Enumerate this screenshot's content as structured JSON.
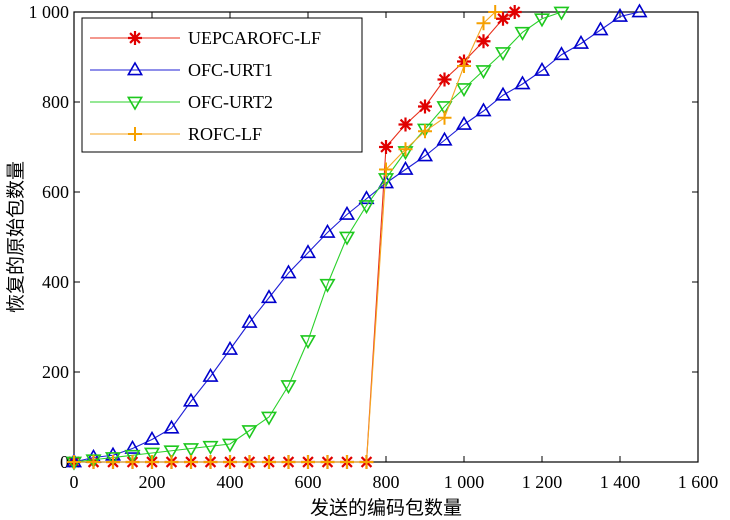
{
  "chart_data": {
    "type": "line",
    "xlabel": "发送的编码包数量",
    "ylabel": "恢复的原始包数量",
    "xlim": [
      0,
      1600
    ],
    "ylim": [
      0,
      1000
    ],
    "xticks": [
      0,
      200,
      400,
      600,
      800,
      1000,
      1200,
      1400,
      1600
    ],
    "yticks": [
      0,
      200,
      400,
      600,
      800,
      1000
    ],
    "xtick_labels": [
      "0",
      "200",
      "400",
      "600",
      "800",
      "1 000",
      "1 200",
      "1 400",
      "1 600"
    ],
    "ytick_labels": [
      "0",
      "200",
      "400",
      "600",
      "800",
      "1 000"
    ],
    "grid": false,
    "legend_position": "top-left",
    "series": [
      {
        "name": "UEPCAROFC-LF",
        "color": "#e8301c",
        "marker_color": "#e00000",
        "marker": "asterisk",
        "x": [
          0,
          50,
          100,
          150,
          200,
          250,
          300,
          350,
          400,
          450,
          500,
          550,
          600,
          650,
          700,
          750,
          800,
          850,
          900,
          950,
          1000,
          1050,
          1100,
          1130
        ],
        "y": [
          0,
          0,
          0,
          0,
          0,
          0,
          0,
          0,
          0,
          0,
          0,
          0,
          0,
          0,
          0,
          0,
          700,
          750,
          790,
          850,
          890,
          935,
          985,
          1000
        ]
      },
      {
        "name": "OFC-URT1",
        "color": "#1f1fd6",
        "marker_color": "#0000cc",
        "marker": "triangle-up",
        "x": [
          0,
          50,
          100,
          150,
          200,
          250,
          300,
          350,
          400,
          450,
          500,
          550,
          600,
          650,
          700,
          750,
          800,
          850,
          900,
          950,
          1000,
          1050,
          1100,
          1150,
          1200,
          1250,
          1300,
          1350,
          1400,
          1450
        ],
        "y": [
          0,
          10,
          15,
          30,
          50,
          75,
          135,
          190,
          250,
          310,
          365,
          420,
          465,
          510,
          550,
          585,
          620,
          650,
          680,
          715,
          750,
          780,
          815,
          840,
          870,
          905,
          930,
          960,
          990,
          1000
        ]
      },
      {
        "name": "OFC-URT2",
        "color": "#2bd12b",
        "marker_color": "#1ec81e",
        "marker": "triangle-down",
        "x": [
          0,
          50,
          100,
          150,
          200,
          250,
          300,
          350,
          400,
          450,
          500,
          550,
          600,
          650,
          700,
          750,
          800,
          850,
          900,
          950,
          1000,
          1050,
          1100,
          1150,
          1200,
          1250
        ],
        "y": [
          0,
          5,
          10,
          15,
          20,
          25,
          30,
          35,
          40,
          70,
          100,
          170,
          270,
          395,
          500,
          570,
          630,
          690,
          740,
          790,
          830,
          870,
          910,
          955,
          985,
          1000
        ]
      },
      {
        "name": "ROFC-LF",
        "color": "#f5a623",
        "marker_color": "#f5a000",
        "marker": "plus",
        "x": [
          0,
          50,
          100,
          150,
          200,
          250,
          300,
          350,
          400,
          450,
          500,
          550,
          600,
          650,
          700,
          750,
          800,
          850,
          900,
          950,
          1000,
          1050,
          1080
        ],
        "y": [
          0,
          0,
          0,
          0,
          0,
          0,
          0,
          0,
          0,
          0,
          0,
          0,
          0,
          0,
          0,
          0,
          650,
          695,
          735,
          765,
          880,
          975,
          1000
        ]
      }
    ]
  }
}
